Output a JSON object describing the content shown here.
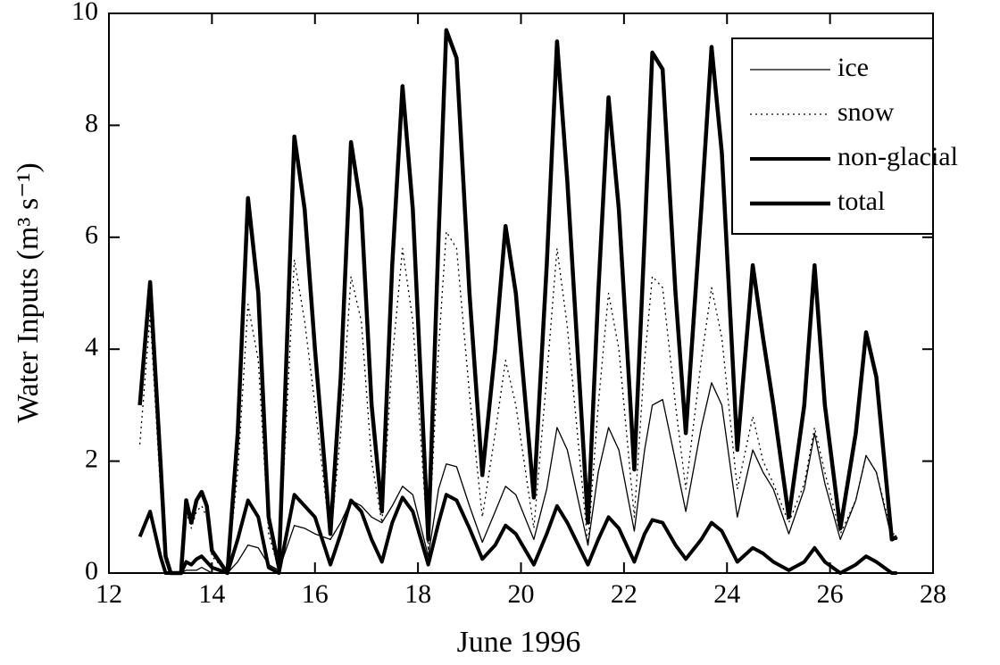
{
  "chart_data": {
    "type": "line",
    "xlabel": "June 1996",
    "ylabel": "Water Inputs (m³ s⁻¹)",
    "xlim": [
      12,
      28
    ],
    "xticks": [
      12,
      14,
      16,
      18,
      20,
      22,
      24,
      26,
      28
    ],
    "ylim": [
      0,
      10
    ],
    "yticks": [
      0,
      2,
      4,
      6,
      8,
      10
    ],
    "legend": "upper right",
    "x": [
      12.6,
      12.8,
      13.0,
      13.1,
      13.2,
      13.4,
      13.5,
      13.6,
      13.7,
      13.8,
      13.9,
      14.0,
      14.3,
      14.5,
      14.7,
      14.9,
      15.1,
      15.3,
      15.6,
      15.8,
      16.0,
      16.3,
      16.5,
      16.7,
      16.9,
      17.1,
      17.3,
      17.5,
      17.7,
      17.9,
      18.2,
      18.4,
      18.55,
      18.75,
      19.0,
      19.25,
      19.5,
      19.7,
      19.9,
      20.25,
      20.5,
      20.7,
      20.9,
      21.3,
      21.5,
      21.7,
      21.9,
      22.2,
      22.4,
      22.55,
      22.75,
      23.0,
      23.2,
      23.5,
      23.7,
      23.9,
      24.2,
      24.5,
      24.7,
      24.9,
      25.2,
      25.5,
      25.7,
      25.9,
      26.2,
      26.5,
      26.7,
      26.9,
      27.2,
      27.3
    ],
    "series": [
      {
        "name": "ice",
        "color": "#000000",
        "linewidth": 1.3,
        "dash": "solid",
        "values": [
          0,
          0,
          0,
          0,
          0,
          0,
          0.05,
          0.05,
          0.05,
          0.1,
          0.05,
          0,
          0,
          0.2,
          0.5,
          0.45,
          0.15,
          0.05,
          0.85,
          0.8,
          0.7,
          0.6,
          0.9,
          1.3,
          1.2,
          1.0,
          0.9,
          1.2,
          1.55,
          1.4,
          0.3,
          1.5,
          1.95,
          1.9,
          1.2,
          0.55,
          1.1,
          1.55,
          1.4,
          0.6,
          1.5,
          2.6,
          2.2,
          0.5,
          1.8,
          2.6,
          2.2,
          0.75,
          2.2,
          3.0,
          3.1,
          2.0,
          1.1,
          2.6,
          3.4,
          3.0,
          1.0,
          2.2,
          1.8,
          1.5,
          0.7,
          1.5,
          2.5,
          1.6,
          0.6,
          1.3,
          2.1,
          1.8,
          0.6,
          0.6
        ]
      },
      {
        "name": "snow",
        "color": "#000000",
        "linewidth": 1.3,
        "dash": "dotted",
        "values": [
          2.3,
          4.6,
          1.5,
          0.2,
          0,
          0,
          1.1,
          0.8,
          1.1,
          1.2,
          1.0,
          0.3,
          0,
          1.8,
          4.8,
          3.8,
          0.7,
          0.05,
          5.6,
          4.5,
          3.0,
          0.6,
          2.5,
          5.3,
          4.5,
          2.0,
          0.9,
          3.8,
          5.8,
          4.5,
          0.4,
          4.0,
          6.1,
          5.8,
          3.2,
          1.0,
          2.5,
          3.8,
          3.0,
          0.8,
          3.5,
          5.8,
          4.4,
          0.5,
          3.0,
          5.0,
          4.0,
          1.0,
          3.8,
          5.3,
          5.1,
          3.0,
          1.5,
          3.8,
          5.1,
          4.2,
          1.5,
          2.8,
          2.0,
          1.6,
          0.9,
          1.6,
          2.6,
          1.8,
          0.7,
          1.3,
          2.1,
          1.8,
          0.7,
          0.7
        ]
      },
      {
        "name": "non-glacial",
        "color": "#000000",
        "linewidth": 4,
        "dash": "solid",
        "values": [
          0.65,
          1.1,
          0.3,
          0,
          0,
          0,
          0.2,
          0.15,
          0.25,
          0.3,
          0.2,
          0.1,
          0,
          0.6,
          1.3,
          1.0,
          0.1,
          0,
          1.4,
          1.2,
          1.0,
          0.15,
          0.7,
          1.3,
          1.1,
          0.6,
          0.2,
          0.9,
          1.35,
          1.1,
          0.15,
          0.9,
          1.4,
          1.3,
          0.8,
          0.25,
          0.5,
          0.85,
          0.7,
          0.15,
          0.7,
          1.2,
          0.9,
          0.15,
          0.6,
          1.0,
          0.8,
          0.2,
          0.7,
          0.95,
          0.9,
          0.5,
          0.25,
          0.6,
          0.9,
          0.75,
          0.2,
          0.45,
          0.35,
          0.2,
          0.05,
          0.2,
          0.45,
          0.2,
          0,
          0.15,
          0.3,
          0.2,
          0,
          0
        ]
      },
      {
        "name": "total",
        "color": "#000000",
        "linewidth": 4.5,
        "dash": "solid",
        "values": [
          3.0,
          5.2,
          2.0,
          0.3,
          0,
          0,
          1.3,
          0.9,
          1.3,
          1.45,
          1.2,
          0.4,
          0,
          2.5,
          6.7,
          5.0,
          1.0,
          0.1,
          7.8,
          6.5,
          4.0,
          0.7,
          3.5,
          7.7,
          6.5,
          3.0,
          1.1,
          5.5,
          8.7,
          6.5,
          0.6,
          6.0,
          9.7,
          9.2,
          5.0,
          1.75,
          4.0,
          6.2,
          5.0,
          1.35,
          5.5,
          9.5,
          7.0,
          0.9,
          5.0,
          8.5,
          6.5,
          1.85,
          6.0,
          9.3,
          9.0,
          5.0,
          2.5,
          6.5,
          9.4,
          7.5,
          2.2,
          5.5,
          4.2,
          3.0,
          1.0,
          3.0,
          5.5,
          3.0,
          0.8,
          2.5,
          4.3,
          3.5,
          0.6,
          0.65
        ]
      }
    ]
  }
}
